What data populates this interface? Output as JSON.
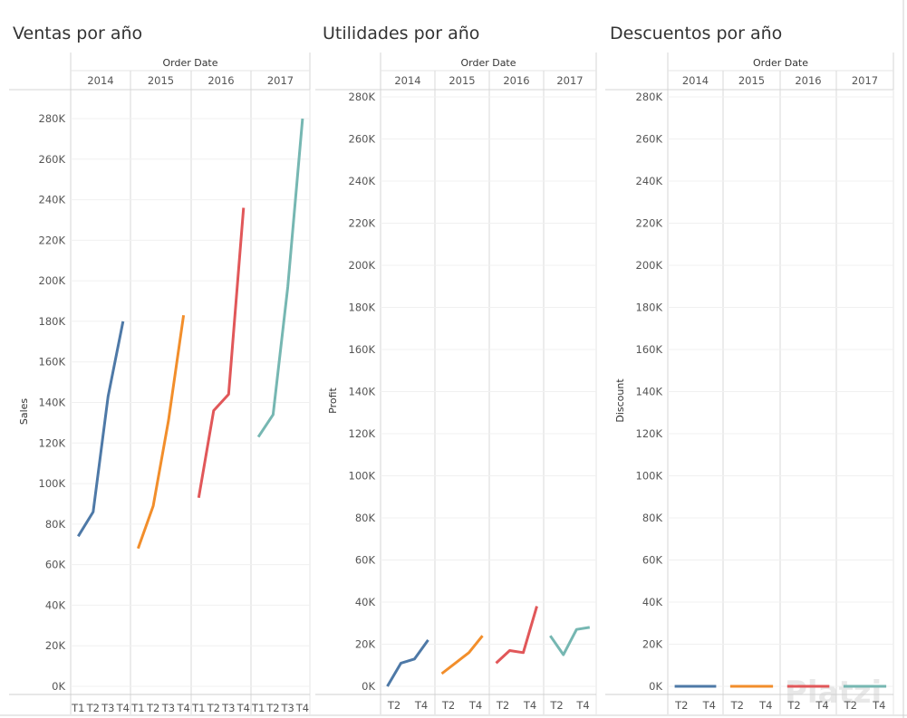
{
  "watermark": "Platzi",
  "colors": {
    "2014": "#4e79a7",
    "2015": "#f28e2b",
    "2016": "#e15759",
    "2017": "#76b7b2"
  },
  "chart_data": [
    {
      "type": "line",
      "title": "Ventas por año",
      "column_header": "Order Date",
      "ylabel": "Sales",
      "ylim": [
        0,
        280000
      ],
      "yticks": [
        0,
        20000,
        40000,
        60000,
        80000,
        100000,
        120000,
        140000,
        160000,
        180000,
        200000,
        220000,
        240000,
        260000,
        280000
      ],
      "ytick_labels": [
        "0K",
        "20K",
        "40K",
        "60K",
        "80K",
        "100K",
        "120K",
        "140K",
        "160K",
        "180K",
        "200K",
        "220K",
        "240K",
        "260K",
        "280K"
      ],
      "quarter_labels": [
        "T1",
        "T2",
        "T3",
        "T4"
      ],
      "series": [
        {
          "name": "2014",
          "x": [
            "T1",
            "T2",
            "T3",
            "T4"
          ],
          "values": [
            74000,
            86000,
            143000,
            180000
          ]
        },
        {
          "name": "2015",
          "x": [
            "T1",
            "T2",
            "T3",
            "T4"
          ],
          "values": [
            68000,
            89000,
            131000,
            183000
          ]
        },
        {
          "name": "2016",
          "x": [
            "T1",
            "T2",
            "T3",
            "T4"
          ],
          "values": [
            93000,
            136000,
            144000,
            236000
          ]
        },
        {
          "name": "2017",
          "x": [
            "T1",
            "T2",
            "T3",
            "T4"
          ],
          "values": [
            123000,
            134000,
            197000,
            280000
          ]
        }
      ]
    },
    {
      "type": "line",
      "title": "Utilidades por año",
      "column_header": "Order Date",
      "ylabel": "Profit",
      "ylim": [
        0,
        280000
      ],
      "yticks": [
        0,
        20000,
        40000,
        60000,
        80000,
        100000,
        120000,
        140000,
        160000,
        180000,
        200000,
        220000,
        240000,
        260000,
        280000
      ],
      "ytick_labels": [
        "0K",
        "20K",
        "40K",
        "60K",
        "80K",
        "100K",
        "120K",
        "140K",
        "160K",
        "180K",
        "200K",
        "220K",
        "240K",
        "260K",
        "280K"
      ],
      "quarter_labels": [
        "T2",
        "T4"
      ],
      "series": [
        {
          "name": "2014",
          "x": [
            "T1",
            "T2",
            "T3",
            "T4"
          ],
          "values": [
            0,
            11000,
            13000,
            22000
          ]
        },
        {
          "name": "2015",
          "x": [
            "T1",
            "T2",
            "T3",
            "T4"
          ],
          "values": [
            6000,
            11000,
            16000,
            24000
          ]
        },
        {
          "name": "2016",
          "x": [
            "T1",
            "T2",
            "T3",
            "T4"
          ],
          "values": [
            11000,
            17000,
            16000,
            38000
          ]
        },
        {
          "name": "2017",
          "x": [
            "T1",
            "T2",
            "T3",
            "T4"
          ],
          "values": [
            24000,
            15000,
            27000,
            28000
          ]
        }
      ]
    },
    {
      "type": "line",
      "title": "Descuentos por año",
      "column_header": "Order Date",
      "ylabel": "Discount",
      "ylim": [
        0,
        280000
      ],
      "yticks": [
        0,
        20000,
        40000,
        60000,
        80000,
        100000,
        120000,
        140000,
        160000,
        180000,
        200000,
        220000,
        240000,
        260000,
        280000
      ],
      "ytick_labels": [
        "0K",
        "20K",
        "40K",
        "60K",
        "80K",
        "100K",
        "120K",
        "140K",
        "160K",
        "180K",
        "200K",
        "220K",
        "240K",
        "260K",
        "280K"
      ],
      "quarter_labels": [
        "T2",
        "T4"
      ],
      "series": [
        {
          "name": "2014",
          "x": [
            "T1",
            "T2",
            "T3",
            "T4"
          ],
          "values": [
            0,
            0,
            0,
            0
          ]
        },
        {
          "name": "2015",
          "x": [
            "T1",
            "T2",
            "T3",
            "T4"
          ],
          "values": [
            0,
            0,
            0,
            0
          ]
        },
        {
          "name": "2016",
          "x": [
            "T1",
            "T2",
            "T3",
            "T4"
          ],
          "values": [
            0,
            0,
            0,
            0
          ]
        },
        {
          "name": "2017",
          "x": [
            "T1",
            "T2",
            "T3",
            "T4"
          ],
          "values": [
            0,
            0,
            0,
            0
          ]
        }
      ]
    }
  ]
}
